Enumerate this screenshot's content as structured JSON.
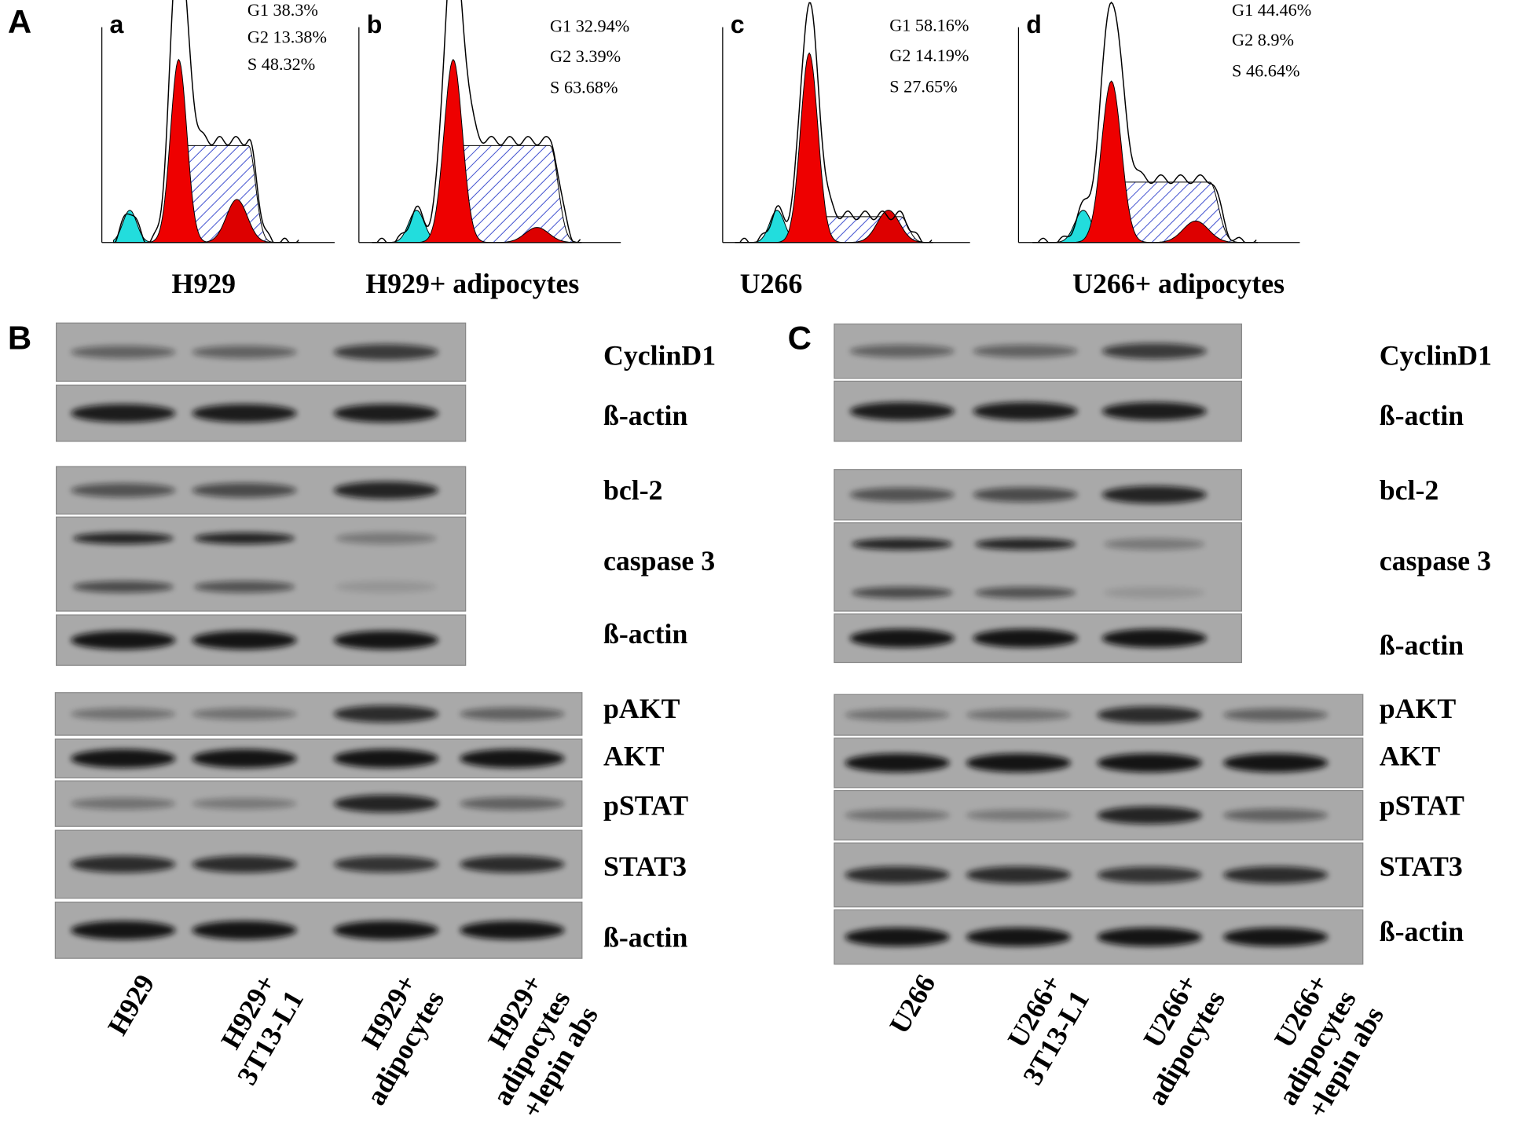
{
  "panel_A": {
    "label": "A",
    "histograms": [
      {
        "letter": "a",
        "stats": [
          "G1 38.3%",
          "G2 13.38%",
          "S 48.32%"
        ],
        "caption": "H929"
      },
      {
        "letter": "b",
        "stats": [
          "G1 32.94%",
          "G2 3.39%",
          "S 63.68%"
        ],
        "caption": "H929+ adipocytes"
      },
      {
        "letter": "c",
        "stats": [
          "G1 58.16%",
          "G2 14.19%",
          "S 27.65%"
        ],
        "caption": "U266"
      },
      {
        "letter": "d",
        "stats": [
          "G1 44.46%",
          "G2 8.9%",
          "S 46.64%"
        ],
        "caption": "U266+ adipocytes"
      }
    ]
  },
  "panel_B": {
    "label": "B",
    "blots": [
      "CyclinD1",
      "ß-actin",
      "bcl-2",
      "caspase 3",
      "ß-actin",
      "pAKT",
      "AKT",
      "pSTAT",
      "STAT3",
      "ß-actin"
    ],
    "lanes": [
      [
        "H929"
      ],
      [
        "H929+",
        "3T13-L1"
      ],
      [
        "H929+",
        "adipocytes"
      ],
      [
        "H929+",
        "adipocytes",
        "+lepin abs"
      ]
    ]
  },
  "panel_C": {
    "label": "C",
    "blots": [
      "CyclinD1",
      "ß-actin",
      "bcl-2",
      "caspase 3",
      "ß-actin",
      "pAKT",
      "AKT",
      "pSTAT",
      "STAT3",
      "ß-actin"
    ],
    "lanes": [
      [
        "U266"
      ],
      [
        "U266+",
        "3T13-L1"
      ],
      [
        "U266+",
        "adipocytes"
      ],
      [
        "U266+",
        "adipocytes",
        "+lepin abs"
      ]
    ]
  }
}
